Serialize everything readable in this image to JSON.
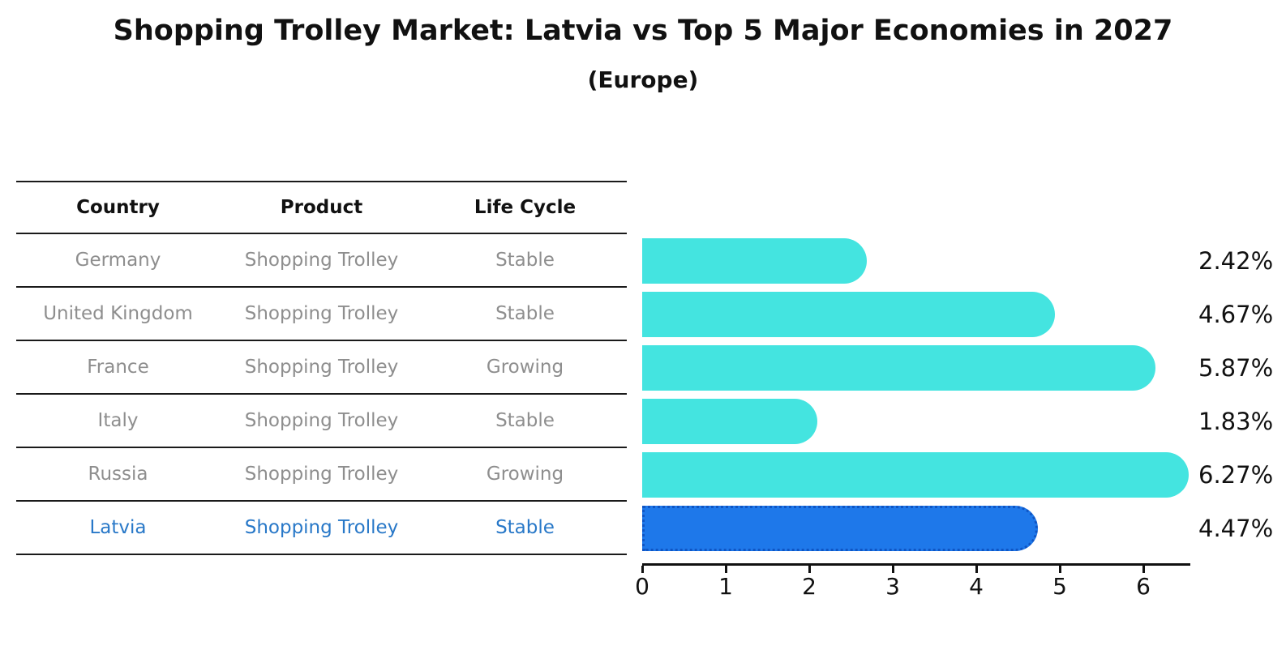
{
  "title": "Shopping Trolley Market: Latvia vs Top 5 Major Economies in 2027",
  "subtitle": "(Europe)",
  "table": {
    "headers": [
      "Country",
      "Product",
      "Life Cycle"
    ],
    "rows": [
      {
        "country": "Germany",
        "product": "Shopping Trolley",
        "life_cycle": "Stable",
        "highlighted": false
      },
      {
        "country": "United Kingdom",
        "product": "Shopping Trolley",
        "life_cycle": "Stable",
        "highlighted": false
      },
      {
        "country": "France",
        "product": "Shopping Trolley",
        "life_cycle": "Growing",
        "highlighted": false
      },
      {
        "country": "Italy",
        "product": "Shopping Trolley",
        "life_cycle": "Stable",
        "highlighted": false
      },
      {
        "country": "Russia",
        "product": "Shopping Trolley",
        "life_cycle": "Growing",
        "highlighted": false
      },
      {
        "country": "Latvia",
        "product": "Shopping Trolley",
        "life_cycle": "Stable",
        "highlighted": true
      }
    ]
  },
  "chart_data": {
    "type": "bar",
    "orientation": "horizontal",
    "title": "Shopping Trolley Market: Latvia vs Top 5 Major Economies in 2027",
    "subtitle": "(Europe)",
    "categories": [
      "Germany",
      "United Kingdom",
      "France",
      "Italy",
      "Russia",
      "Latvia"
    ],
    "values": [
      2.42,
      4.67,
      5.87,
      1.83,
      6.27,
      4.47
    ],
    "value_labels": [
      "2.42%",
      "4.67%",
      "5.87%",
      "1.83%",
      "6.27%",
      "4.47%"
    ],
    "highlight_index": 5,
    "x_ticks": [
      "0",
      "1",
      "2",
      "3",
      "4",
      "5",
      "6"
    ],
    "xlim": [
      0,
      6.55
    ],
    "grid": false,
    "legend": "none",
    "colors": {
      "bar": "#44E4E0",
      "highlight_bar": "#1E78EA",
      "highlight_border": "#0F55C4",
      "highlight_text": "#2878C8",
      "row_text": "#8e8e8e",
      "axis_and_text": "#111111"
    }
  }
}
